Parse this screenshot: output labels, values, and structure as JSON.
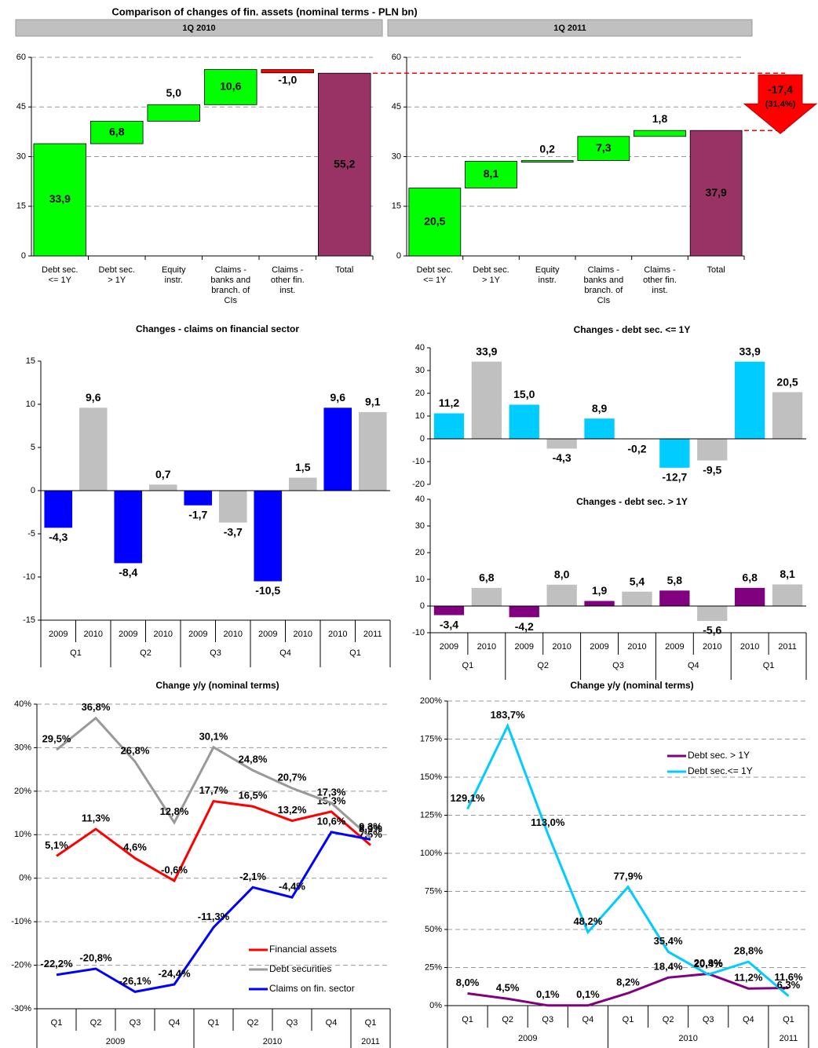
{
  "title": "Comparison of changes of fin. assets (nominal terms - PLN bn)",
  "chart_data": [
    {
      "type": "waterfall",
      "header": "1Q 2010",
      "categories": [
        [
          "Debt sec.",
          "<= 1Y"
        ],
        [
          "Debt sec.",
          "> 1Y"
        ],
        [
          "Equity",
          "instr."
        ],
        [
          "Claims -",
          "banks and",
          "branch. of",
          "CIs"
        ],
        [
          "Claims -",
          "other fin.",
          "inst."
        ],
        [
          "Total"
        ]
      ],
      "values": [
        33.9,
        6.8,
        5.0,
        10.6,
        -1.0,
        55.2
      ],
      "value_labels": [
        "33,9",
        "6,8",
        "5,0",
        "10,6",
        "-1,0",
        "55,2"
      ],
      "measure": [
        "relative",
        "relative",
        "relative",
        "relative",
        "relative",
        "total"
      ],
      "colors": [
        "#00ff00",
        "#00ff00",
        "#00ff00",
        "#00ff00",
        "#ff0000",
        "#993366"
      ],
      "ylim": [
        0,
        60
      ],
      "yticks": [
        0,
        15,
        30,
        45,
        60
      ],
      "grid": true
    },
    {
      "type": "waterfall",
      "header": "1Q 2011",
      "categories": [
        [
          "Debt sec.",
          "<= 1Y"
        ],
        [
          "Debt sec.",
          "> 1Y"
        ],
        [
          "Equity",
          "instr."
        ],
        [
          "Claims -",
          "banks and",
          "branch. of",
          "CIs"
        ],
        [
          "Claims -",
          "other fin.",
          "inst."
        ],
        [
          "Total"
        ]
      ],
      "values": [
        20.5,
        8.1,
        0.2,
        7.3,
        1.8,
        37.9
      ],
      "value_labels": [
        "20,5",
        "8,1",
        "0,2",
        "7,3",
        "1,8",
        "37,9"
      ],
      "measure": [
        "relative",
        "relative",
        "relative",
        "relative",
        "relative",
        "total"
      ],
      "colors": [
        "#00ff00",
        "#00ff00",
        "#00ff00",
        "#00ff00",
        "#00ff00",
        "#993366"
      ],
      "ylim": [
        0,
        60
      ],
      "yticks": [
        0,
        15,
        30,
        45,
        60
      ],
      "grid": true,
      "annotation": [
        "-17,4",
        "(31,4%)"
      ]
    },
    {
      "type": "bar",
      "title": "Changes - claims on financial sector",
      "groups": [
        {
          "label": "Q1",
          "categories": [
            "2009",
            "2010"
          ]
        },
        {
          "label": "Q2",
          "categories": [
            "2009",
            "2010"
          ]
        },
        {
          "label": "Q3",
          "categories": [
            "2009",
            "2010"
          ]
        },
        {
          "label": "Q4",
          "categories": [
            "2009",
            "2010"
          ]
        },
        {
          "label": "Q1",
          "categories": [
            "2010",
            "2011"
          ]
        }
      ],
      "values": [
        -4.3,
        9.6,
        -8.4,
        0.7,
        -1.7,
        -3.7,
        -10.5,
        1.5,
        9.6,
        9.1
      ],
      "value_labels": [
        "-4,3",
        "9,6",
        "-8,4",
        "0,7",
        "-1,7",
        "-3,7",
        "-10,5",
        "1,5",
        "9,6",
        "9,1"
      ],
      "colors": [
        "#0000ff",
        "#c0c0c0",
        "#0000ff",
        "#c0c0c0",
        "#0000ff",
        "#c0c0c0",
        "#0000ff",
        "#c0c0c0",
        "#0000ff",
        "#c0c0c0"
      ],
      "ylim": [
        -15,
        15
      ],
      "yticks": [
        -15,
        -10,
        -5,
        0,
        5,
        10,
        15
      ],
      "grid": false
    },
    {
      "type": "bar",
      "title": "Changes - debt sec. <= 1Y",
      "values": [
        11.2,
        33.9,
        15.0,
        -4.3,
        8.9,
        -0.2,
        -12.7,
        -9.5,
        33.9,
        20.5
      ],
      "value_labels": [
        "11,2",
        "33,9",
        "15,0",
        "-4,3",
        "8,9",
        "-0,2",
        "-12,7",
        "-9,5",
        "33,9",
        "20,5"
      ],
      "colors": [
        "#00ccff",
        "#c0c0c0",
        "#00ccff",
        "#c0c0c0",
        "#00ccff",
        "#c0c0c0",
        "#00ccff",
        "#c0c0c0",
        "#00ccff",
        "#c0c0c0"
      ],
      "ylim": [
        -20,
        40
      ],
      "yticks": [
        -20,
        -10,
        0,
        10,
        20,
        30,
        40
      ],
      "grid": false
    },
    {
      "type": "bar",
      "title": "Changes - debt sec. > 1Y",
      "groups": [
        {
          "label": "Q1",
          "categories": [
            "2009",
            "2010"
          ]
        },
        {
          "label": "Q2",
          "categories": [
            "2009",
            "2010"
          ]
        },
        {
          "label": "Q3",
          "categories": [
            "2009",
            "2010"
          ]
        },
        {
          "label": "Q4",
          "categories": [
            "2009",
            "2010"
          ]
        },
        {
          "label": "Q1",
          "categories": [
            "2010",
            "2011"
          ]
        }
      ],
      "values": [
        -3.4,
        6.8,
        -4.2,
        8.0,
        1.9,
        5.4,
        5.8,
        -5.6,
        6.8,
        8.1
      ],
      "value_labels": [
        "-3,4",
        "6,8",
        "-4,2",
        "8,0",
        "1,9",
        "5,4",
        "5,8",
        "-5,6",
        "6,8",
        "8,1"
      ],
      "colors": [
        "#800080",
        "#c0c0c0",
        "#800080",
        "#c0c0c0",
        "#800080",
        "#c0c0c0",
        "#800080",
        "#c0c0c0",
        "#800080",
        "#c0c0c0"
      ],
      "ylim": [
        -10,
        40
      ],
      "yticks": [
        -10,
        0,
        10,
        20,
        30,
        40
      ],
      "grid": false
    },
    {
      "type": "line",
      "title": "Change y/y (nominal terms)",
      "groups": [
        {
          "label": "2009",
          "categories": [
            "Q1",
            "Q2",
            "Q3",
            "Q4"
          ]
        },
        {
          "label": "2010",
          "categories": [
            "Q1",
            "Q2",
            "Q3",
            "Q4"
          ]
        },
        {
          "label": "2011",
          "categories": [
            "Q1"
          ]
        }
      ],
      "series": [
        {
          "name": "Financial assets",
          "color": "#ff0000",
          "values": [
            5.1,
            11.3,
            4.6,
            -0.6,
            17.7,
            16.5,
            13.2,
            15.3,
            7.6
          ],
          "value_labels": [
            "5,1%",
            "11,3%",
            "4,6%",
            "-0,6%",
            "17,7%",
            "16,5%",
            "13,2%",
            "15,3%",
            "7,6%"
          ]
        },
        {
          "name": "Debt securities",
          "color": "#999999",
          "values": [
            29.5,
            36.8,
            26.8,
            12.8,
            30.1,
            24.8,
            20.7,
            17.3,
            9.3
          ],
          "value_labels": [
            "29,5%",
            "36,8%",
            "26,8%",
            "12,8%",
            "30,1%",
            "24,8%",
            "20,7%",
            "17,3%",
            "9,3%"
          ]
        },
        {
          "name": "Claims on fin. sector",
          "color": "#0000ff",
          "values": [
            -22.2,
            -20.8,
            -26.1,
            -24.4,
            -11.3,
            -2.1,
            -4.4,
            10.6,
            8.9
          ],
          "value_labels": [
            "-22,2%",
            "-20,8%",
            "-26,1%",
            "-24,4%",
            "-11,3%",
            "-2,1%",
            "-4,4%",
            "10,6%",
            "8,9%"
          ]
        }
      ],
      "ylim": [
        -30,
        40
      ],
      "yticks": [
        {
          "value": -30,
          "label": "-30%"
        },
        {
          "value": -20,
          "label": "-20%"
        },
        {
          "value": -10,
          "label": "-10%"
        },
        {
          "value": 0,
          "label": "0%"
        },
        {
          "value": 10,
          "label": "10%"
        },
        {
          "value": 20,
          "label": "20%"
        },
        {
          "value": 30,
          "label": "30%"
        },
        {
          "value": 40,
          "label": "40%"
        }
      ],
      "grid": true,
      "legend": "lower right"
    },
    {
      "type": "line",
      "title": "Change y/y (nominal terms)",
      "groups": [
        {
          "label": "2009",
          "categories": [
            "Q1",
            "Q2",
            "Q3",
            "Q4"
          ]
        },
        {
          "label": "2010",
          "categories": [
            "Q1",
            "Q2",
            "Q3",
            "Q4"
          ]
        },
        {
          "label": "2011",
          "categories": [
            "Q1"
          ]
        }
      ],
      "series": [
        {
          "name": "Debt sec. > 1Y",
          "color": "#800080",
          "values": [
            8.0,
            4.5,
            0.1,
            0.1,
            8.2,
            18.4,
            20.9,
            11.2,
            11.6
          ],
          "value_labels": [
            "8,0%",
            "4,5%",
            "0,1%",
            "0,1%",
            "8,2%",
            "18,4%",
            "20,9%",
            "11,2%",
            "11,6%"
          ]
        },
        {
          "name": "Debt sec.<= 1Y",
          "color": "#00ccff",
          "values": [
            129.1,
            183.7,
            113.0,
            48.2,
            77.9,
            35.4,
            20.4,
            28.8,
            6.3
          ],
          "value_labels": [
            "129,1%",
            "183,7%",
            "113,0%",
            "48,2%",
            "77,9%",
            "35,4%",
            "20,4%",
            "28,8%",
            "6,3%"
          ]
        }
      ],
      "ylim": [
        0,
        200
      ],
      "yticks": [
        {
          "value": 0,
          "label": "0%"
        },
        {
          "value": 25,
          "label": "25%"
        },
        {
          "value": 50,
          "label": "50%"
        },
        {
          "value": 75,
          "label": "75%"
        },
        {
          "value": 100,
          "label": "100%"
        },
        {
          "value": 125,
          "label": "125%"
        },
        {
          "value": 150,
          "label": "150%"
        },
        {
          "value": 175,
          "label": "175%"
        },
        {
          "value": 200,
          "label": "200%"
        }
      ],
      "grid": true,
      "legend": "upper right"
    }
  ]
}
